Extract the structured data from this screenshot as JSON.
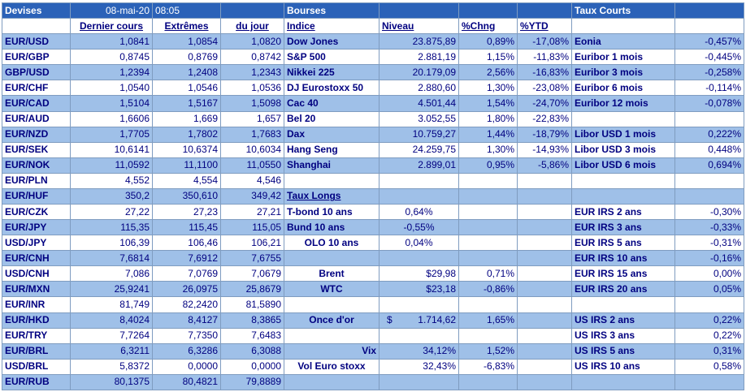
{
  "header": {
    "devises": "Devises",
    "date": "08-mai-20",
    "time": "08:05",
    "bourses": "Bourses",
    "taux_courts": "Taux Courts"
  },
  "columns": {
    "dernier": "Dernier cours",
    "extremes": "Extrêmes",
    "du_jour": "du jour",
    "indice": "Indice",
    "niveau": "Niveau",
    "chng": "%Chng",
    "ytd": "%YTD"
  },
  "rows": [
    {
      "pair": "EUR/USD",
      "last": "1,0841",
      "high": "1,0854",
      "low": "1,0820",
      "name": "Dow Jones",
      "level": "23.875,89",
      "chng": "0,89%",
      "ytd": "-17,08%",
      "rate": "Eonia",
      "rval": "-0,457%"
    },
    {
      "pair": "EUR/GBP",
      "last": "0,8745",
      "high": "0,8769",
      "low": "0,8742",
      "name": "S&P 500",
      "level": "2.881,19",
      "chng": "1,15%",
      "ytd": "-11,83%",
      "rate": "Euribor 1 mois",
      "rval": "-0,445%"
    },
    {
      "pair": "GBP/USD",
      "last": "1,2394",
      "high": "1,2408",
      "low": "1,2343",
      "name": "Nikkei 225",
      "level": "20.179,09",
      "chng": "2,56%",
      "ytd": "-16,83%",
      "rate": "Euribor 3 mois",
      "rval": "-0,258%"
    },
    {
      "pair": "EUR/CHF",
      "last": "1,0540",
      "high": "1,0546",
      "low": "1,0536",
      "name": "DJ Eurostoxx 50",
      "level": "2.880,60",
      "chng": "1,30%",
      "ytd": "-23,08%",
      "rate": "Euribor 6 mois",
      "rval": "-0,114%"
    },
    {
      "pair": "EUR/CAD",
      "last": "1,5104",
      "high": "1,5167",
      "low": "1,5098",
      "name": "Cac 40",
      "level": "4.501,44",
      "chng": "1,54%",
      "ytd": "-24,70%",
      "rate": "Euribor 12 mois",
      "rval": "-0,078%"
    },
    {
      "pair": "EUR/AUD",
      "last": "1,6606",
      "high": "1,669",
      "low": "1,657",
      "name": "Bel 20",
      "level": "3.052,55",
      "chng": "1,80%",
      "ytd": "-22,83%",
      "rate": "",
      "rval": ""
    },
    {
      "pair": "EUR/NZD",
      "last": "1,7705",
      "high": "1,7802",
      "low": "1,7683",
      "name": "Dax",
      "level": "10.759,27",
      "chng": "1,44%",
      "ytd": "-18,79%",
      "rate": "Libor USD 1 mois",
      "rval": "0,222%"
    },
    {
      "pair": "EUR/SEK",
      "last": "10,6141",
      "high": "10,6374",
      "low": "10,6034",
      "name": "Hang Seng",
      "level": "24.259,75",
      "chng": "1,30%",
      "ytd": "-14,93%",
      "rate": "Libor USD 3 mois",
      "rval": "0,448%"
    },
    {
      "pair": "EUR/NOK",
      "last": "11,0592",
      "high": "11,1100",
      "low": "11,0550",
      "name": "Shanghai",
      "level": "2.899,01",
      "chng": "0,95%",
      "ytd": "-5,86%",
      "rate": "Libor USD 6 mois",
      "rval": "0,694%"
    },
    {
      "pair": "EUR/PLN",
      "last": "4,552",
      "high": "4,554",
      "low": "4,546",
      "name": "",
      "level": "",
      "chng": "",
      "ytd": "",
      "rate": "",
      "rval": ""
    },
    {
      "pair": "EUR/HUF",
      "last": "350,2",
      "high": "350,610",
      "low": "349,42",
      "name": "Taux Longs",
      "level": "",
      "chng": "",
      "ytd": "",
      "rate": "",
      "rval": ""
    },
    {
      "pair": "EUR/CZK",
      "last": "27,22",
      "high": "27,23",
      "low": "27,21",
      "name": "T-bond 10 ans",
      "level": "0,64%",
      "chng": "",
      "ytd": "",
      "rate": "EUR IRS 2 ans",
      "rval": "-0,30%"
    },
    {
      "pair": "EUR/JPY",
      "last": "115,35",
      "high": "115,45",
      "low": "115,05",
      "name": "Bund 10 ans",
      "level": "-0,55%",
      "chng": "",
      "ytd": "",
      "rate": "EUR IRS 3 ans",
      "rval": "-0,33%"
    },
    {
      "pair": "USD/JPY",
      "last": "106,39",
      "high": "106,46",
      "low": "106,21",
      "name": "OLO 10 ans",
      "level": "0,04%",
      "chng": "",
      "ytd": "",
      "rate": "EUR IRS 5 ans",
      "rval": "-0,31%"
    },
    {
      "pair": "EUR/CNH",
      "last": "7,6814",
      "high": "7,6912",
      "low": "7,6755",
      "name": "",
      "level": "",
      "chng": "",
      "ytd": "",
      "rate": "EUR IRS 10 ans",
      "rval": "-0,16%"
    },
    {
      "pair": "USD/CNH",
      "last": "7,086",
      "high": "7,0769",
      "low": "7,0679",
      "name": "Brent",
      "level": "$29,98",
      "chng": "0,71%",
      "ytd": "",
      "rate": "EUR IRS 15 ans",
      "rval": "0,00%"
    },
    {
      "pair": "EUR/MXN",
      "last": "25,9241",
      "high": "26,0975",
      "low": "25,8679",
      "name": "WTC",
      "level": "$23,18",
      "chng": "-0,86%",
      "ytd": "",
      "rate": "EUR IRS 20 ans",
      "rval": "0,05%"
    },
    {
      "pair": "EUR/INR",
      "last": "81,749",
      "high": "82,2420",
      "low": "81,5890",
      "name": "",
      "level": "",
      "chng": "",
      "ytd": "",
      "rate": "",
      "rval": ""
    },
    {
      "pair": "EUR/HKD",
      "last": "8,4024",
      "high": "8,4127",
      "low": "8,3865",
      "name": "Once d'or",
      "level_currency": "$",
      "level": "1.714,62",
      "chng": "1,65%",
      "ytd": "",
      "rate": "US IRS 2 ans",
      "rval": "0,22%"
    },
    {
      "pair": "EUR/TRY",
      "last": "7,7264",
      "high": "7,7350",
      "low": "7,6483",
      "name": "",
      "level": "",
      "chng": "",
      "ytd": "",
      "rate": "US IRS 3 ans",
      "rval": "0,22%"
    },
    {
      "pair": "EUR/BRL",
      "last": "6,3211",
      "high": "6,3286",
      "low": "6,3088",
      "name": "Vix",
      "level": "34,12%",
      "chng": "1,52%",
      "ytd": "",
      "rate": "US IRS 5 ans",
      "rval": "0,31%"
    },
    {
      "pair": "USD/BRL",
      "last": "5,8372",
      "high": "0,0000",
      "low": "0,0000",
      "name": "Vol Euro stoxx",
      "level": "32,43%",
      "chng": "-6,83%",
      "ytd": "",
      "rate": "US IRS 10 ans",
      "rval": "0,58%"
    },
    {
      "pair": "EUR/RUB",
      "last": "80,1375",
      "high": "80,4821",
      "low": "79,8889",
      "name": "",
      "level": "",
      "chng": "",
      "ytd": "",
      "rate": "",
      "rval": ""
    }
  ]
}
